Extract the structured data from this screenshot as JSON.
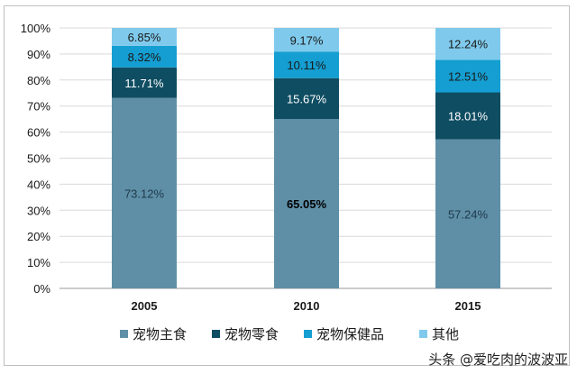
{
  "chart_data": {
    "type": "bar",
    "stacked": true,
    "categories": [
      "2005",
      "2010",
      "2015"
    ],
    "series": [
      {
        "name": "宠物主食",
        "values": [
          73.12,
          65.05,
          57.24
        ],
        "labels": [
          "73.12%",
          "65.05%",
          "57.24%"
        ],
        "color": "#5e8fa7"
      },
      {
        "name": "宠物零食",
        "values": [
          11.71,
          15.67,
          18.01
        ],
        "labels": [
          "11.71%",
          "15.67%",
          "18.01%"
        ],
        "color": "#0f4d62"
      },
      {
        "name": "宠物保健品",
        "values": [
          8.32,
          10.11,
          12.51
        ],
        "labels": [
          "8.32%",
          "10.11%",
          "12.51%"
        ],
        "color": "#149ed1"
      },
      {
        "name": "其他",
        "values": [
          6.85,
          9.17,
          12.24
        ],
        "labels": [
          "6.85%",
          "9.17%",
          "12.24%"
        ],
        "color": "#7fcaec"
      }
    ],
    "yticks": [
      "0%",
      "10%",
      "20%",
      "30%",
      "40%",
      "50%",
      "60%",
      "70%",
      "80%",
      "90%",
      "100%"
    ],
    "ylim": [
      0,
      100
    ],
    "grid": true,
    "legend": "bottom"
  },
  "watermark": "头条 @爱吃肉的波波亚"
}
